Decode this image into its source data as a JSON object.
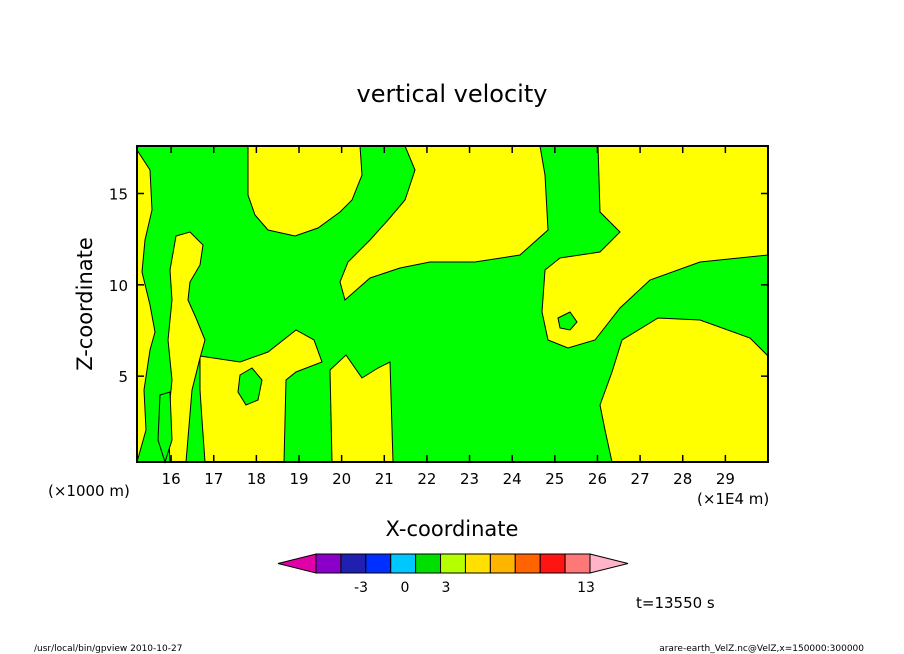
{
  "chart_data": {
    "type": "heatmap",
    "title": "vertical velocity",
    "xlabel": "X-coordinate",
    "ylabel": "Z-coordinate",
    "x_unit_label": "(×1E4 m)",
    "y_unit_label": "(×1000 m)",
    "xlim": [
      15.2,
      30.0
    ],
    "ylim": [
      0.3,
      17.6
    ],
    "x_ticks": [
      "16",
      "17",
      "18",
      "19",
      "20",
      "21",
      "22",
      "23",
      "24",
      "25",
      "26",
      "27",
      "28",
      "29"
    ],
    "y_ticks": [
      "5",
      "10",
      "15"
    ],
    "fill_colors": {
      "weak_up": "#ffff00",
      "weak_down": "#00ff00",
      "frame": "#000000"
    },
    "colorbar": {
      "colors": [
        "#e000a8",
        "#8a00c8",
        "#2020b0",
        "#0030ff",
        "#00c8ff",
        "#00e000",
        "#b4ff00",
        "#ffe000",
        "#ffb400",
        "#ff6400",
        "#ff1414",
        "#ff7878",
        "#ffb4c8"
      ],
      "tick_labels": [
        "-3",
        "0",
        "3",
        "13"
      ]
    },
    "time_label": "t=13550 s"
  },
  "footer": {
    "left": "/usr/local/bin/gpview   2010-10-27",
    "right": "arare-earth_VelZ.nc@VelZ,x=150000:300000"
  }
}
